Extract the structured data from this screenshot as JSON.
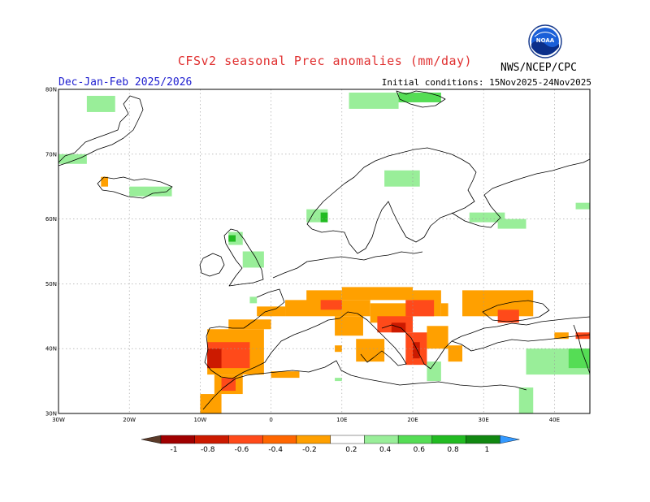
{
  "header": {
    "title": "CFSv2 seasonal Prec anomalies (mm/day)",
    "period": "Dec-Jan-Feb 2025/2026",
    "initial_conditions": "Initial conditions: 15Nov2025-24Nov2025",
    "agency": "NWS/NCEP/CPC",
    "logo_text": "NOAA"
  },
  "axes": {
    "lat_labels": [
      "80N",
      "70N",
      "60N",
      "50N",
      "40N",
      "30N"
    ],
    "lon_labels": [
      "30W",
      "20W",
      "10W",
      "0",
      "10E",
      "20E",
      "30E",
      "40E"
    ],
    "lat_values": [
      80,
      70,
      60,
      50,
      40,
      30
    ],
    "lon_values": [
      -30,
      -20,
      -10,
      0,
      10,
      20,
      30,
      40
    ],
    "lon_range": [
      -30,
      45
    ],
    "lat_range": [
      30,
      80
    ]
  },
  "legend": {
    "labels": [
      "-1",
      "-0.8",
      "-0.6",
      "-0.4",
      "-0.2",
      "0.2",
      "0.4",
      "0.6",
      "0.8",
      "1"
    ],
    "colors": [
      "#5b3a29",
      "#a00000",
      "#cc1a00",
      "#ff4a1a",
      "#ff6600",
      "#ffa000",
      "#ffffff",
      "#99ee99",
      "#55dd55",
      "#22bb22",
      "#118811",
      "#3399ff"
    ]
  },
  "colors": {
    "dry_strong": "#cc1a00",
    "dry_medium": "#ff4a1a",
    "dry_weak": "#ffa000",
    "wet_weak": "#99ee99",
    "wet_medium": "#55dd55",
    "wet_strong": "#22bb22",
    "wet_very": "#118811"
  },
  "chart_data": {
    "type": "heatmap",
    "title": "CFSv2 seasonal Prec anomalies (mm/day)",
    "xlabel": "",
    "ylabel": "",
    "grid": true,
    "cells": [
      {
        "lon0": -26,
        "lon1": -22,
        "lat0": 76.5,
        "lat1": 79,
        "value": 0.3
      },
      {
        "lon0": 11,
        "lon1": 18,
        "lat0": 77,
        "lat1": 79.5,
        "value": 0.3
      },
      {
        "lon0": 18,
        "lon1": 24,
        "lat0": 78,
        "lat1": 79.5,
        "value": 0.5
      },
      {
        "lon0": -30,
        "lon1": -26,
        "lat0": 68.5,
        "lat1": 70,
        "value": 0.3
      },
      {
        "lon0": -24,
        "lon1": -23,
        "lat0": 65,
        "lat1": 66.5,
        "value": -0.5
      },
      {
        "lon0": -20,
        "lon1": -14,
        "lat0": 63.5,
        "lat1": 65,
        "value": 0.3
      },
      {
        "lon0": 5,
        "lon1": 8,
        "lat0": 59.5,
        "lat1": 61.5,
        "value": 0.3
      },
      {
        "lon0": 7,
        "lon1": 8,
        "lat0": 59.5,
        "lat1": 61,
        "value": 0.6
      },
      {
        "lon0": 16,
        "lon1": 21,
        "lat0": 65,
        "lat1": 67.5,
        "value": 0.3
      },
      {
        "lon0": 28,
        "lon1": 33,
        "lat0": 59.5,
        "lat1": 61,
        "value": 0.3
      },
      {
        "lon0": 32,
        "lon1": 36,
        "lat0": 58.5,
        "lat1": 60,
        "value": 0.3
      },
      {
        "lon0": 43,
        "lon1": 45,
        "lat0": 61.5,
        "lat1": 62.5,
        "value": 0.3
      },
      {
        "lon0": -6,
        "lon1": -4,
        "lat0": 56,
        "lat1": 58,
        "value": 0.3
      },
      {
        "lon0": -6,
        "lon1": -5,
        "lat0": 56.5,
        "lat1": 57.5,
        "value": 0.6
      },
      {
        "lon0": -4,
        "lon1": -1,
        "lat0": 52.5,
        "lat1": 55,
        "value": 0.3
      },
      {
        "lon0": -3,
        "lon1": -2,
        "lat0": 47,
        "lat1": 48,
        "value": 0.3
      },
      {
        "lon0": 5,
        "lon1": 10,
        "lat0": 47,
        "lat1": 49,
        "value": -0.3
      },
      {
        "lon0": 10,
        "lon1": 20,
        "lat0": 47.5,
        "lat1": 49.5,
        "value": -0.3
      },
      {
        "lon0": 20,
        "lon1": 24,
        "lat0": 45,
        "lat1": 49,
        "value": -0.3
      },
      {
        "lon0": 24,
        "lon1": 25,
        "lat0": 45,
        "lat1": 47,
        "value": -0.3
      },
      {
        "lon0": 2,
        "lon1": 14,
        "lat0": 45,
        "lat1": 47.5,
        "value": -0.3
      },
      {
        "lon0": -2,
        "lon1": 2,
        "lat0": 45,
        "lat1": 46.5,
        "value": -0.3
      },
      {
        "lon0": 7,
        "lon1": 10,
        "lat0": 46,
        "lat1": 47.5,
        "value": -0.6
      },
      {
        "lon0": 14,
        "lon1": 20,
        "lat0": 44,
        "lat1": 47,
        "value": -0.3
      },
      {
        "lon0": 19,
        "lon1": 23,
        "lat0": 45,
        "lat1": 47.5,
        "value": -0.6
      },
      {
        "lon0": 15,
        "lon1": 20,
        "lat0": 42.5,
        "lat1": 45,
        "value": -0.6
      },
      {
        "lon0": 17,
        "lon1": 19,
        "lat0": 42.5,
        "lat1": 44,
        "value": -0.8
      },
      {
        "lon0": 19,
        "lon1": 22,
        "lat0": 37.5,
        "lat1": 42.5,
        "value": -0.6
      },
      {
        "lon0": 20,
        "lon1": 21,
        "lat0": 38.5,
        "lat1": 41,
        "value": -0.8
      },
      {
        "lon0": 22,
        "lon1": 25,
        "lat0": 40,
        "lat1": 43.5,
        "value": -0.3
      },
      {
        "lon0": 25,
        "lon1": 27,
        "lat0": 38,
        "lat1": 40.5,
        "value": -0.3
      },
      {
        "lon0": 9,
        "lon1": 13,
        "lat0": 42,
        "lat1": 45,
        "value": -0.3
      },
      {
        "lon0": 12,
        "lon1": 16,
        "lat0": 38,
        "lat1": 41.5,
        "value": -0.3
      },
      {
        "lon0": 9,
        "lon1": 10,
        "lat0": 39.5,
        "lat1": 40.5,
        "value": -0.3
      },
      {
        "lon0": -6,
        "lon1": 0,
        "lat0": 43,
        "lat1": 44.5,
        "value": -0.3
      },
      {
        "lon0": -9,
        "lon1": -1,
        "lat0": 36,
        "lat1": 43,
        "value": -0.3
      },
      {
        "lon0": -9,
        "lon1": -3,
        "lat0": 37,
        "lat1": 41,
        "value": -0.6
      },
      {
        "lon0": -9,
        "lon1": -7,
        "lat0": 37,
        "lat1": 40,
        "value": -0.8
      },
      {
        "lon0": -8,
        "lon1": -4,
        "lat0": 33,
        "lat1": 36,
        "value": -0.3
      },
      {
        "lon0": -7,
        "lon1": -5,
        "lat0": 33.5,
        "lat1": 35.5,
        "value": -0.6
      },
      {
        "lon0": -10,
        "lon1": -7,
        "lat0": 30,
        "lat1": 33,
        "value": -0.3
      },
      {
        "lon0": 0,
        "lon1": 4,
        "lat0": 35.5,
        "lat1": 36.5,
        "value": -0.3
      },
      {
        "lon0": 27,
        "lon1": 37,
        "lat0": 45,
        "lat1": 49,
        "value": -0.3
      },
      {
        "lon0": 32,
        "lon1": 35,
        "lat0": 44,
        "lat1": 46,
        "value": -0.6
      },
      {
        "lon0": 40,
        "lon1": 42,
        "lat0": 41.5,
        "lat1": 42.5,
        "value": -0.3
      },
      {
        "lon0": 43,
        "lon1": 45,
        "lat0": 41.5,
        "lat1": 42.5,
        "value": -0.6
      },
      {
        "lon0": 36,
        "lon1": 45,
        "lat0": 36,
        "lat1": 40,
        "value": 0.3
      },
      {
        "lon0": 42,
        "lon1": 45,
        "lat0": 37,
        "lat1": 40,
        "value": 0.5
      },
      {
        "lon0": 35,
        "lon1": 37,
        "lat0": 30,
        "lat1": 34,
        "value": 0.3
      },
      {
        "lon0": 22,
        "lon1": 24,
        "lat0": 35,
        "lat1": 38,
        "value": 0.3
      },
      {
        "lon0": 9,
        "lon1": 10,
        "lat0": 35,
        "lat1": 35.5,
        "value": 0.3
      }
    ]
  }
}
